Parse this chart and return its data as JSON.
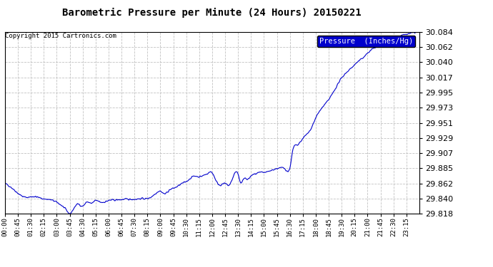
{
  "title": "Barometric Pressure per Minute (24 Hours) 20150221",
  "copyright_text": "Copyright 2015 Cartronics.com",
  "legend_label": "Pressure  (Inches/Hg)",
  "line_color": "#0000cc",
  "background_color": "#ffffff",
  "grid_color": "#bbbbbb",
  "ylim": [
    29.818,
    30.084
  ],
  "yticks": [
    29.818,
    29.84,
    29.862,
    29.885,
    29.907,
    29.929,
    29.951,
    29.973,
    29.995,
    30.017,
    30.04,
    30.062,
    30.084
  ],
  "xtick_labels": [
    "00:00",
    "00:45",
    "01:30",
    "02:15",
    "03:00",
    "03:45",
    "04:30",
    "05:15",
    "06:00",
    "06:45",
    "07:30",
    "08:15",
    "09:00",
    "09:45",
    "10:30",
    "11:15",
    "12:00",
    "12:45",
    "13:30",
    "14:15",
    "15:00",
    "15:45",
    "16:30",
    "17:15",
    "18:00",
    "18:45",
    "19:30",
    "20:15",
    "21:00",
    "21:45",
    "22:30",
    "23:15"
  ],
  "num_points": 1440,
  "waypoints": [
    [
      0,
      29.862
    ],
    [
      20,
      29.857
    ],
    [
      45,
      29.848
    ],
    [
      70,
      29.842
    ],
    [
      100,
      29.843
    ],
    [
      130,
      29.84
    ],
    [
      160,
      29.838
    ],
    [
      190,
      29.832
    ],
    [
      215,
      29.822
    ],
    [
      225,
      29.818
    ],
    [
      240,
      29.826
    ],
    [
      255,
      29.832
    ],
    [
      270,
      29.829
    ],
    [
      285,
      29.835
    ],
    [
      300,
      29.833
    ],
    [
      315,
      29.837
    ],
    [
      330,
      29.835
    ],
    [
      360,
      29.837
    ],
    [
      390,
      29.838
    ],
    [
      420,
      29.839
    ],
    [
      450,
      29.839
    ],
    [
      480,
      29.84
    ],
    [
      495,
      29.84
    ],
    [
      510,
      29.843
    ],
    [
      525,
      29.848
    ],
    [
      540,
      29.851
    ],
    [
      555,
      29.847
    ],
    [
      570,
      29.852
    ],
    [
      585,
      29.855
    ],
    [
      600,
      29.858
    ],
    [
      615,
      29.862
    ],
    [
      630,
      29.865
    ],
    [
      645,
      29.87
    ],
    [
      660,
      29.873
    ],
    [
      675,
      29.872
    ],
    [
      690,
      29.874
    ],
    [
      705,
      29.877
    ],
    [
      720,
      29.878
    ],
    [
      735,
      29.865
    ],
    [
      750,
      29.86
    ],
    [
      765,
      29.862
    ],
    [
      780,
      29.86
    ],
    [
      795,
      29.874
    ],
    [
      810,
      29.876
    ],
    [
      820,
      29.862
    ],
    [
      830,
      29.87
    ],
    [
      840,
      29.868
    ],
    [
      855,
      29.873
    ],
    [
      870,
      29.876
    ],
    [
      885,
      29.878
    ],
    [
      900,
      29.878
    ],
    [
      930,
      29.882
    ],
    [
      960,
      29.885
    ],
    [
      975,
      29.883
    ],
    [
      990,
      29.885
    ],
    [
      1000,
      29.91
    ],
    [
      1015,
      29.918
    ],
    [
      1035,
      29.928
    ],
    [
      1060,
      29.94
    ],
    [
      1080,
      29.958
    ],
    [
      1100,
      29.972
    ],
    [
      1120,
      29.982
    ],
    [
      1140,
      29.995
    ],
    [
      1160,
      30.01
    ],
    [
      1180,
      30.022
    ],
    [
      1200,
      30.03
    ],
    [
      1220,
      30.038
    ],
    [
      1240,
      30.045
    ],
    [
      1260,
      30.053
    ],
    [
      1280,
      30.06
    ],
    [
      1300,
      30.065
    ],
    [
      1320,
      30.068
    ],
    [
      1340,
      30.072
    ],
    [
      1360,
      30.076
    ],
    [
      1380,
      30.079
    ],
    [
      1400,
      30.081
    ],
    [
      1420,
      30.083
    ],
    [
      1439,
      30.084
    ]
  ]
}
